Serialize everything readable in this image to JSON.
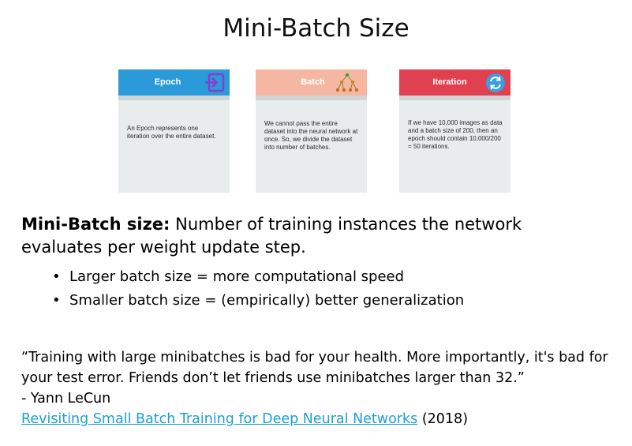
{
  "title": "Mini-Batch Size",
  "cards": [
    {
      "label": "Epoch",
      "color": "#2a9ad8",
      "text": "An Epoch represents one iteration over the entire dataset.",
      "icon": "enter-arrow-icon"
    },
    {
      "label": "Batch",
      "color": "#f6b7a2",
      "text": "We cannot pass the entire dataset into the neural network at once. So, we divide the dataset into number of batches.",
      "icon": "tree-hierarchy-icon"
    },
    {
      "label": "Iteration",
      "color": "#e0404f",
      "text": "If we have 10,000 images as data and a batch size of 200, then an epoch should contain 10,000/200 = 50 iterations.",
      "icon": "refresh-cycle-icon"
    }
  ],
  "definition": {
    "term": "Mini-Batch size:",
    "text": " Number of training instances the network evaluates per weight update step."
  },
  "bullets": [
    "Larger batch size = more computational speed",
    "Smaller batch size = (empirically) better generalization"
  ],
  "quote": {
    "text": "“Training with large minibatches is bad for your health. More importantly, it's bad for your test error. Friends don’t let friends use minibatches larger than 32.”",
    "author": "- Yann LeCun",
    "link_text": "Revisiting Small Batch Training for Deep Neural Networks",
    "year": " (2018)"
  }
}
